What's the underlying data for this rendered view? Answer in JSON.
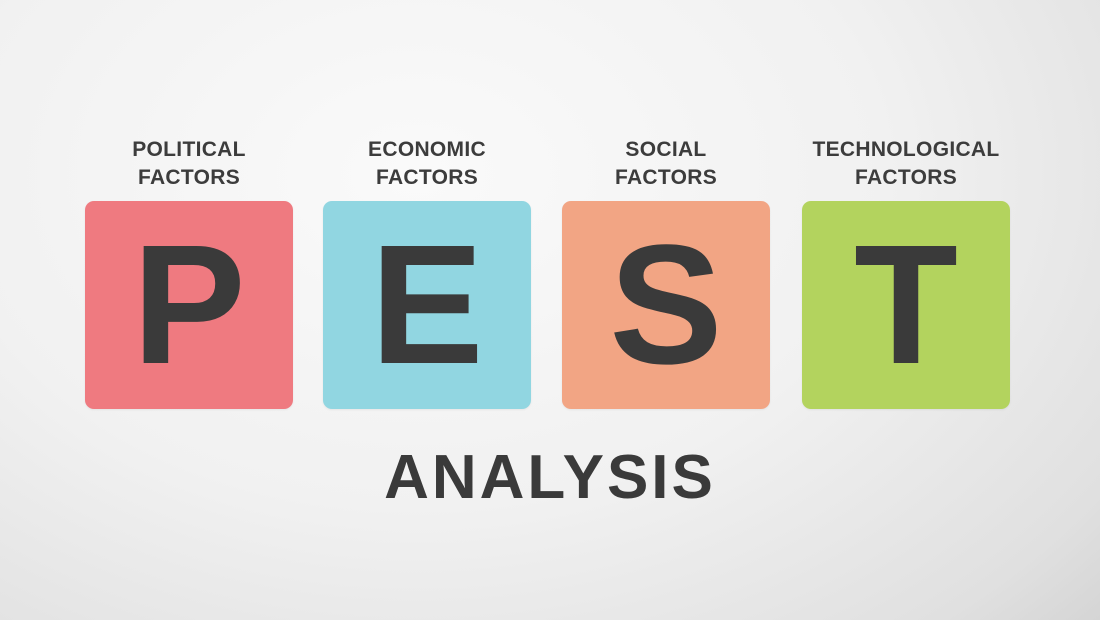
{
  "factors": [
    {
      "line1": "POLITICAL",
      "line2": "FACTORS",
      "letter": "P",
      "color": "#ef7a80"
    },
    {
      "line1": "ECONOMIC",
      "line2": "FACTORS",
      "letter": "E",
      "color": "#91d6e1"
    },
    {
      "line1": "SOCIAL",
      "line2": "FACTORS",
      "letter": "S",
      "color": "#f2a584"
    },
    {
      "line1": "TECHNOLOGICAL",
      "line2": "FACTORS",
      "letter": "T",
      "color": "#b3d35e"
    }
  ],
  "title": "ANALYSIS"
}
